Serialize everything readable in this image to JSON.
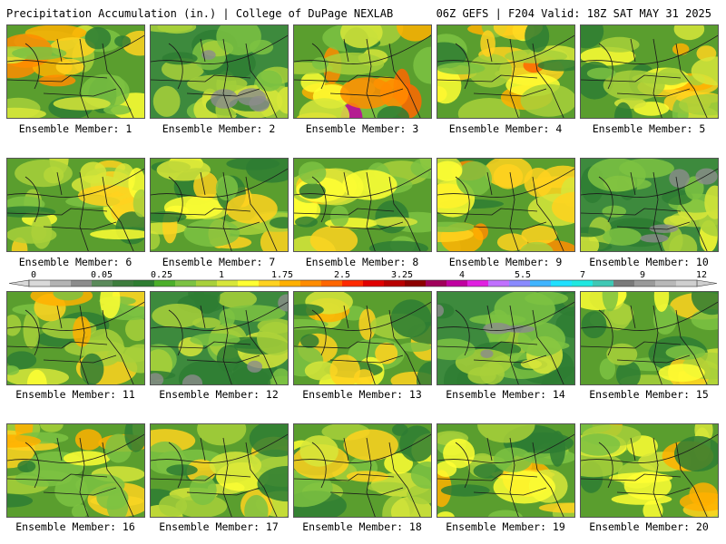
{
  "header": {
    "left_title": "Precipitation Accumulation (in.) | College of DuPage NEXLAB",
    "right_title": "06Z GEFS | F204 Valid: 18Z SAT MAY 31 2025"
  },
  "colorbar": {
    "tick_labels": [
      "0",
      "0.05",
      "0.25",
      "1",
      "1.75",
      "2.5",
      "3.25",
      "4",
      "5.5",
      "7",
      "9",
      "12"
    ],
    "colors": [
      "#d9d9d9",
      "#b3b3b3",
      "#8c8c8c",
      "#5a8a5a",
      "#3d7d3d",
      "#2e7d32",
      "#4caf2a",
      "#7cc242",
      "#a8d03a",
      "#d7e63a",
      "#ffff33",
      "#ffd21f",
      "#ffb000",
      "#ff8c00",
      "#ff6600",
      "#ff2a00",
      "#e00000",
      "#b80000",
      "#8c0000",
      "#a0005a",
      "#c000a0",
      "#e020e0",
      "#c070ff",
      "#8a8aff",
      "#40b4ff",
      "#20e0ff",
      "#20e8e0",
      "#40c8b4",
      "#7a7a7a",
      "#9a9a9a",
      "#b8b8b8",
      "#cfcfcf"
    ]
  },
  "members": [
    {
      "label": "Ensemble Member: 1",
      "intensity": 0.65
    },
    {
      "label": "Ensemble Member: 2",
      "intensity": 0.15
    },
    {
      "label": "Ensemble Member: 3",
      "intensity": 0.9
    },
    {
      "label": "Ensemble Member: 4",
      "intensity": 0.7
    },
    {
      "label": "Ensemble Member: 5",
      "intensity": 0.55
    },
    {
      "label": "Ensemble Member: 6",
      "intensity": 0.5
    },
    {
      "label": "Ensemble Member: 7",
      "intensity": 0.45
    },
    {
      "label": "Ensemble Member: 8",
      "intensity": 0.35
    },
    {
      "label": "Ensemble Member: 9",
      "intensity": 0.7
    },
    {
      "label": "Ensemble Member: 10",
      "intensity": 0.25
    },
    {
      "label": "Ensemble Member: 11",
      "intensity": 0.6
    },
    {
      "label": "Ensemble Member: 12",
      "intensity": 0.15
    },
    {
      "label": "Ensemble Member: 13",
      "intensity": 0.45
    },
    {
      "label": "Ensemble Member: 14",
      "intensity": 0.2
    },
    {
      "label": "Ensemble Member: 15",
      "intensity": 0.45
    },
    {
      "label": "Ensemble Member: 16",
      "intensity": 0.5
    },
    {
      "label": "Ensemble Member: 17",
      "intensity": 0.45
    },
    {
      "label": "Ensemble Member: 18",
      "intensity": 0.4
    },
    {
      "label": "Ensemble Member: 19",
      "intensity": 0.55
    },
    {
      "label": "Ensemble Member: 20",
      "intensity": 0.55
    }
  ]
}
